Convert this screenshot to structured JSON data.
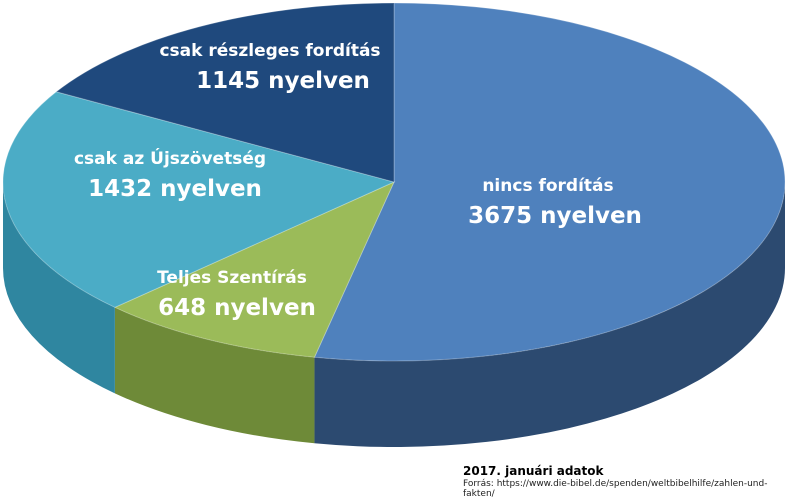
{
  "chart_data": {
    "type": "pie",
    "style": "3d",
    "slices": [
      {
        "label": "nincs fordítás",
        "value": 3675,
        "value_text": "3675 nyelven",
        "color": "#4F81BD",
        "side": "#2C4A70"
      },
      {
        "label": "Teljes Szentírás",
        "value": 648,
        "value_text": "648 nyelven",
        "color": "#9BBB59",
        "side": "#6E8A38"
      },
      {
        "label": "csak az Újszövetség",
        "value": 1432,
        "value_text": "1432 nyelven",
        "color": "#4BACC6",
        "side": "#2F86A0"
      },
      {
        "label": "csak részleges fordítás",
        "value": 1145,
        "value_text": "1145 nyelven",
        "color": "#1F497D",
        "side": "#15325A"
      }
    ]
  },
  "footer": {
    "title": "2017. januári adatok",
    "source": "Forrás: https://www.die-bibel.de/spenden/weltbibelhilfe/zahlen-und-fakten/"
  }
}
